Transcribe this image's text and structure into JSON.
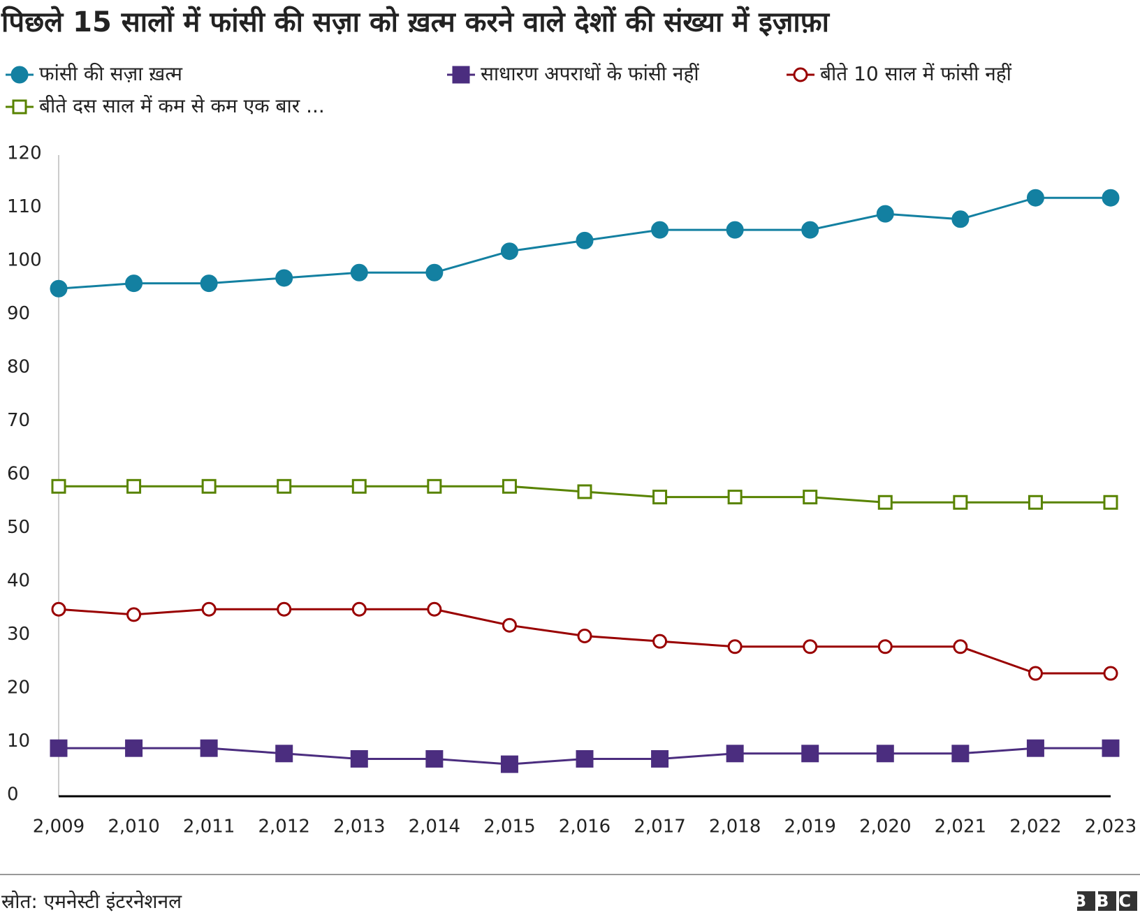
{
  "chart_data": {
    "type": "line",
    "title": "पिछले 15 सालों में फांसी की सज़ा को ख़त्म करने वाले देशों की संख्या में इज़ाफ़ा",
    "source": "स्रोत: एमनेस्टी इंटरनेशनल",
    "logo": "BBC",
    "categories": [
      "2,009",
      "2,010",
      "2,011",
      "2,012",
      "2,013",
      "2,014",
      "2,015",
      "2,016",
      "2,017",
      "2,018",
      "2,019",
      "2,020",
      "2,021",
      "2,022",
      "2,023"
    ],
    "ylim": [
      0,
      120
    ],
    "yticks": [
      0,
      10,
      20,
      30,
      40,
      50,
      60,
      70,
      80,
      90,
      100,
      110,
      120
    ],
    "grid": false,
    "series": [
      {
        "name": "फांसी की सज़ा ख़त्म",
        "color": "#1380a1",
        "marker": "circle",
        "filled": true,
        "values": [
          95,
          96,
          96,
          97,
          98,
          98,
          102,
          104,
          106,
          106,
          106,
          109,
          108,
          112,
          112
        ]
      },
      {
        "name": "साधारण अपराधों के फांसी नहीं",
        "color": "#4b2d7f",
        "marker": "square",
        "filled": true,
        "values": [
          9,
          9,
          9,
          8,
          7,
          7,
          6,
          7,
          7,
          8,
          8,
          8,
          8,
          9,
          9
        ]
      },
      {
        "name": "बीते 10 साल में फांसी नहीं",
        "color": "#990000",
        "marker": "circle",
        "filled": false,
        "values": [
          35,
          34,
          35,
          35,
          35,
          35,
          32,
          30,
          29,
          28,
          28,
          28,
          28,
          23,
          23
        ]
      },
      {
        "name": "बीते दस साल में कम से कम एक बार ...",
        "color": "#588300",
        "marker": "square",
        "filled": false,
        "values": [
          58,
          58,
          58,
          58,
          58,
          58,
          58,
          57,
          56,
          56,
          56,
          55,
          55,
          55,
          55
        ]
      }
    ]
  }
}
